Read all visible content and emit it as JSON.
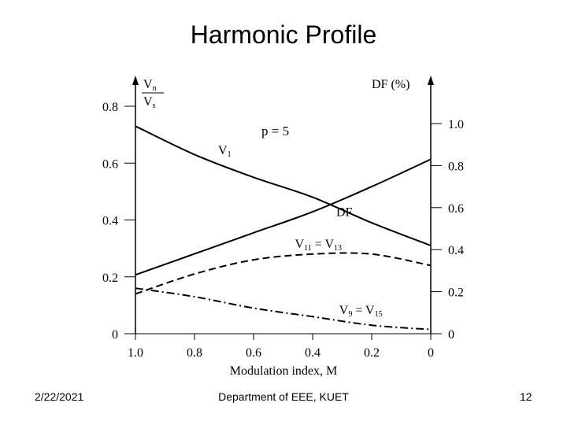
{
  "slide": {
    "title": "Harmonic Profile",
    "footer_date": "2/22/2021",
    "footer_center": "Department of EEE, KUET",
    "page_number": "12"
  },
  "chart_data": {
    "type": "line",
    "xlabel": "Modulation index, M",
    "xlim": [
      1.0,
      0
    ],
    "x_ticks": [
      "1.0",
      "0.8",
      "0.6",
      "0.4",
      "0.2",
      "0"
    ],
    "y_left": {
      "label_numerator": "V",
      "label_numerator_sub": "n",
      "label_denominator": "V",
      "label_denominator_sub": "s",
      "ylim": [
        0,
        0.8
      ],
      "ticks": [
        "0.8",
        "0.6",
        "0.4",
        "0.2",
        "0"
      ]
    },
    "y_right": {
      "label": "DF (%)",
      "ylim": [
        0,
        1.0
      ],
      "ticks": [
        "1.0",
        "0.8",
        "0.6",
        "0.4",
        "0.2",
        "0"
      ]
    },
    "annotation": "p = 5",
    "series": [
      {
        "name": "V1",
        "name_main": "V",
        "name_sub": "1",
        "axis": "left",
        "style": "solid",
        "x": [
          1.0,
          0.8,
          0.6,
          0.4,
          0.2,
          0.0
        ],
        "y": [
          0.73,
          0.63,
          0.55,
          0.48,
          0.39,
          0.31
        ]
      },
      {
        "name": "DF",
        "name_main": "DF",
        "axis": "right",
        "style": "solid",
        "x": [
          1.0,
          0.8,
          0.6,
          0.4,
          0.2,
          0.0
        ],
        "y": [
          0.28,
          0.38,
          0.48,
          0.58,
          0.7,
          0.83
        ]
      },
      {
        "name": "V11 = V13",
        "name_main": "V",
        "name_sub": "11",
        "name_mid": " = V",
        "name_sub2": "13",
        "axis": "left",
        "style": "dashed",
        "x": [
          1.0,
          0.8,
          0.6,
          0.4,
          0.2,
          0.0
        ],
        "y": [
          0.14,
          0.21,
          0.26,
          0.28,
          0.28,
          0.24
        ]
      },
      {
        "name": "V9 = V15",
        "name_main": "V",
        "name_sub": "9",
        "name_mid": " = V",
        "name_sub2": "15",
        "axis": "left",
        "style": "dashdot",
        "x": [
          1.0,
          0.8,
          0.6,
          0.4,
          0.2,
          0.0
        ],
        "y": [
          0.16,
          0.13,
          0.09,
          0.06,
          0.03,
          0.015
        ]
      }
    ]
  }
}
